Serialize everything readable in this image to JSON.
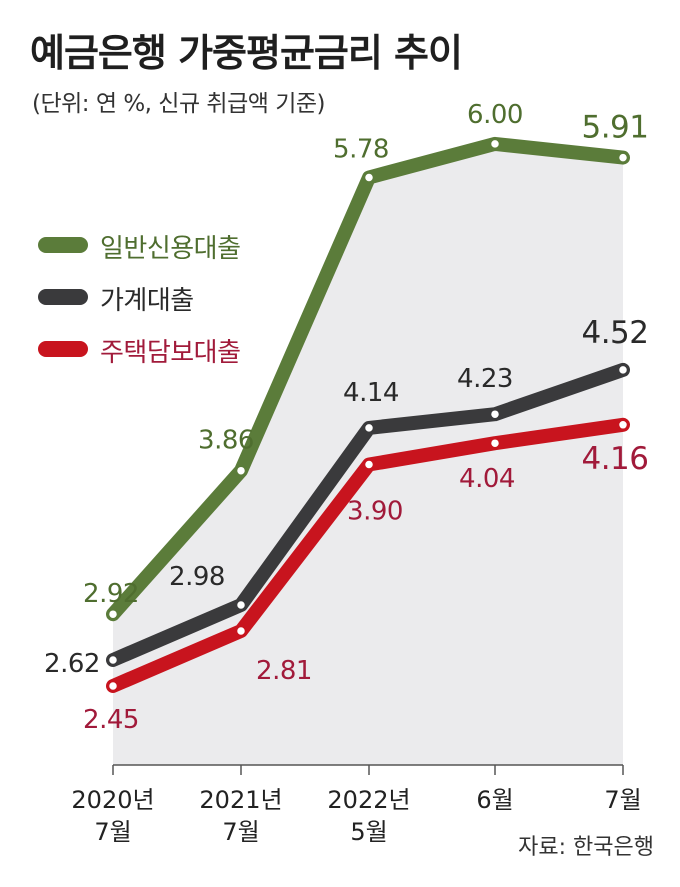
{
  "title": "예금은행 가중평균금리 추이",
  "subtitle": "(단위: 연 %, 신규 취급액 기준)",
  "source": "자료: 한국은행",
  "colors": {
    "green": "#5b7c3a",
    "dark": "#3a3a3c",
    "red": "#c8141e",
    "area": "#ebebed",
    "label_green": "#4f6e2f",
    "label_dark": "#2a2a2a",
    "label_red": "#a11a3a"
  },
  "chart_data": {
    "type": "line",
    "categories": [
      "2020년\n7월",
      "2021년\n7월",
      "2022년\n5월",
      "6월",
      "7월"
    ],
    "series": [
      {
        "name": "일반신용대출",
        "values": [
          2.92,
          3.86,
          5.78,
          6.0,
          5.91
        ],
        "labels": [
          "2.92",
          "3.86",
          "5.78",
          "6.00",
          "5.91"
        ]
      },
      {
        "name": "가계대출",
        "values": [
          2.62,
          2.98,
          4.14,
          4.23,
          4.52
        ],
        "labels": [
          "2.62",
          "2.98",
          "4.14",
          "4.23",
          "4.52"
        ]
      },
      {
        "name": "주택담보대출",
        "values": [
          2.45,
          2.81,
          3.9,
          4.04,
          4.16
        ],
        "labels": [
          "2.45",
          "2.81",
          "3.90",
          "4.04",
          "4.16"
        ]
      }
    ],
    "legend_position": "left-middle",
    "grid": false
  }
}
